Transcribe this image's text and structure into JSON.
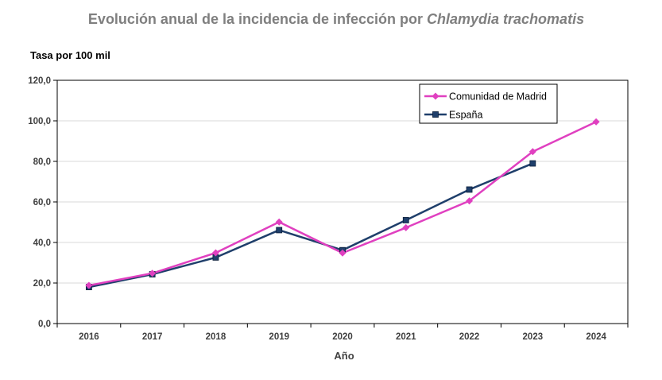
{
  "chart_data": {
    "type": "line",
    "title_prefix": "Evolución anual de la incidencia de infección por ",
    "title_italic": "Chlamydia trachomatis",
    "ylabel": "Tasa por 100 mil",
    "xlabel": "Año",
    "categories": [
      "2016",
      "2017",
      "2018",
      "2019",
      "2020",
      "2021",
      "2022",
      "2023",
      "2024"
    ],
    "ylim": [
      0,
      120
    ],
    "yticks": [
      "0,0",
      "20,0",
      "40,0",
      "60,0",
      "80,0",
      "100,0",
      "120,0"
    ],
    "grid": true,
    "legend_position": "top-right",
    "series": [
      {
        "name": "Comunidad de Madrid",
        "color": "#e040c0",
        "marker": "diamond",
        "values": [
          18.8,
          24.8,
          34.9,
          50.1,
          34.8,
          47.3,
          60.5,
          84.8,
          99.5
        ]
      },
      {
        "name": "España",
        "color": "#1f3f6b",
        "marker": "square",
        "values": [
          18.0,
          24.3,
          32.6,
          46.1,
          36.2,
          51.0,
          66.1,
          79.0,
          null
        ]
      }
    ]
  }
}
